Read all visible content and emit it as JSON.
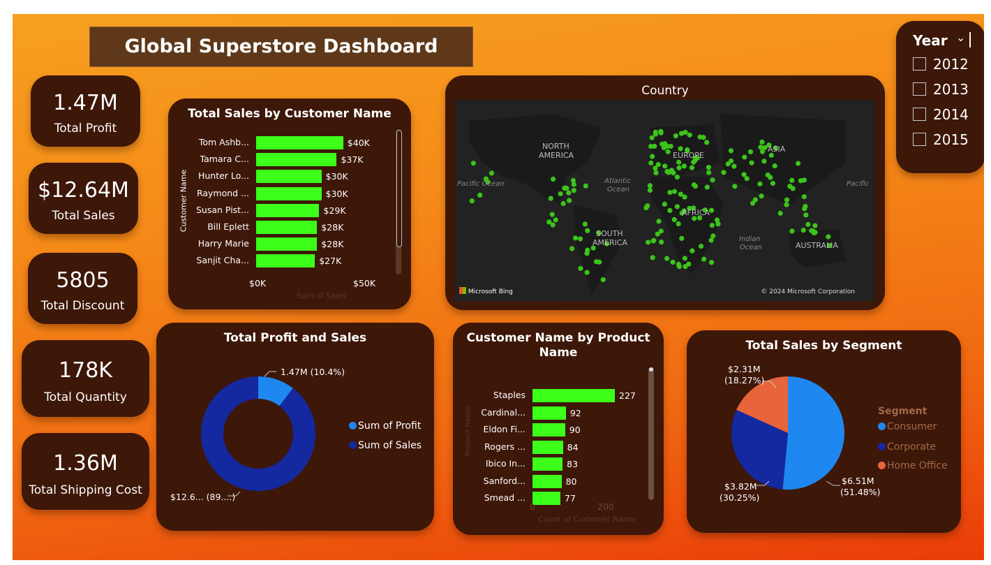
{
  "dashboard": {
    "title": "Global Superstore Dashboard"
  },
  "kpis": {
    "profit": {
      "value": "1.47M",
      "label": "Total Profit"
    },
    "sales": {
      "value": "$12.64M",
      "label": "Total Sales"
    },
    "discount": {
      "value": "5805",
      "label": "Total Discount"
    },
    "quantity": {
      "value": "178K",
      "label": "Total Quantity"
    },
    "shipping": {
      "value": "1.36M",
      "label": "Total Shipping Cost"
    }
  },
  "customer_sales": {
    "title": "Total Sales by Customer Name",
    "ylabel": "Customer Name",
    "xlabel": "Sum of Sales",
    "x_ticks": [
      "$0K",
      "$50K"
    ],
    "names": [
      "Tom Ashb...",
      "Tamara C...",
      "Hunter Lo...",
      "Raymond ...",
      "Susan Pist...",
      "Bill Eplett",
      "Harry Marie",
      "Sanjit Cha..."
    ],
    "labels": [
      "$40K",
      "$37K",
      "$30K",
      "$30K",
      "$29K",
      "$28K",
      "$28K",
      "$27K"
    ]
  },
  "map": {
    "title": "Country",
    "labels": {
      "north_america_1": "NORTH",
      "north_america_2": "AMERICA",
      "south_america_1": "SOUTH",
      "south_america_2": "AMERICA",
      "europe": "EUROPE",
      "africa": "AFRICA",
      "asia": "ASIA",
      "australia": "AUSTRALIA",
      "pacific_left": "Pacific Ocean",
      "pacific_right": "Pacific",
      "atlantic_1": "Atlantic",
      "atlantic_2": "Ocean",
      "indian_1": "Indian",
      "indian_2": "Ocean"
    },
    "bing": "Microsoft Bing",
    "copyright": "© 2024 Microsoft Corporation"
  },
  "year_slicer": {
    "title": "Year",
    "years": [
      "2012",
      "2013",
      "2014",
      "2015"
    ]
  },
  "profit_sales": {
    "title": "Total Profit and Sales",
    "profit_label": "1.47M (10.4%)",
    "sales_label": "$12.6... (89....)",
    "legend": [
      "Sum of Profit",
      "Sum of Sales"
    ]
  },
  "product_chart": {
    "title_1": "Customer Name by Product",
    "title_2": "Name",
    "ylabel": "Product Name",
    "xlabel": "Count of Customer Name",
    "x_ticks": [
      "0",
      "200"
    ],
    "names": [
      "Staples",
      "Cardinal...",
      "Eldon Fi...",
      "Rogers ...",
      "Ibico In...",
      "Sanford...",
      "Smead ..."
    ],
    "labels": [
      "227",
      "92",
      "90",
      "84",
      "83",
      "80",
      "77"
    ]
  },
  "segment_chart": {
    "title": "Total Sales by Segment",
    "legend_title": "Segment",
    "legend": [
      "Consumer",
      "Corporate",
      "Home Office"
    ],
    "labels": {
      "home_1": "$2.31M",
      "home_2": "(18.27%)",
      "corp_1": "$3.82M",
      "corp_2": "(30.25%)",
      "cons_1": "$6.51M",
      "cons_2": "(51.48%)"
    }
  },
  "chart_data": [
    {
      "type": "bar",
      "title": "Total Sales by Customer Name",
      "xlabel": "Sum of Sales",
      "ylabel": "Customer Name",
      "categories": [
        "Tom Ashb...",
        "Tamara C...",
        "Hunter Lo...",
        "Raymond ...",
        "Susan Pist...",
        "Bill Eplett",
        "Harry Marie",
        "Sanjit Cha..."
      ],
      "values": [
        40,
        37,
        30,
        30,
        29,
        28,
        28,
        27
      ],
      "unit": "$K",
      "xlim": [
        0,
        50
      ]
    },
    {
      "type": "pie",
      "title": "Total Profit and Sales",
      "categories": [
        "Sum of Profit",
        "Sum of Sales"
      ],
      "values": [
        10.4,
        89.6
      ],
      "colors": [
        "#1e88f0",
        "#1428a0"
      ]
    },
    {
      "type": "bar",
      "title": "Customer Name by Product Name",
      "xlabel": "Count of Customer Name",
      "ylabel": "Product Name",
      "categories": [
        "Staples",
        "Cardinal...",
        "Eldon Fi...",
        "Rogers ...",
        "Ibico In...",
        "Sanford...",
        "Smead ..."
      ],
      "values": [
        227,
        92,
        90,
        84,
        83,
        80,
        77
      ],
      "xlim": [
        0,
        250
      ]
    },
    {
      "type": "pie",
      "title": "Total Sales by Segment",
      "categories": [
        "Consumer",
        "Corporate",
        "Home Office"
      ],
      "values": [
        51.48,
        30.25,
        18.27
      ],
      "colors": [
        "#1e88f0",
        "#1428a0",
        "#e8643a"
      ]
    }
  ]
}
